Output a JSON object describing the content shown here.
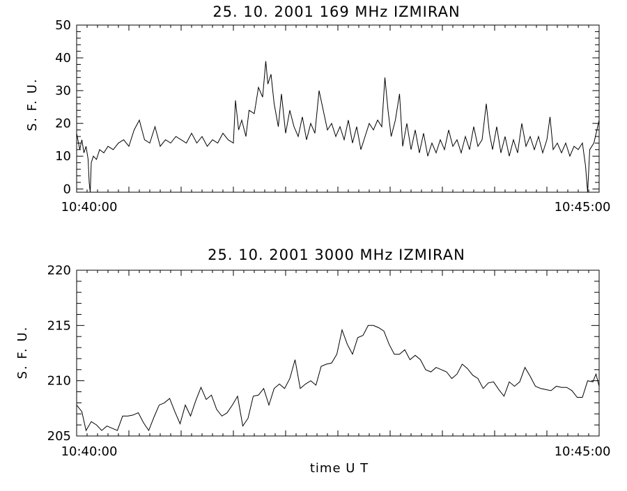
{
  "chart_data": [
    {
      "type": "line",
      "title": "25.  10.  2001    169 MHz    IZMIRAN",
      "ylabel": "S. F. U.",
      "xlabel": "",
      "x_tick_labels": [
        "10:40:00",
        "10:45:00"
      ],
      "y_ticks": [
        0,
        10,
        20,
        30,
        40,
        50
      ],
      "ylim": [
        -1,
        50
      ],
      "xlim_minutes": [
        0,
        5
      ],
      "grid": false,
      "series": [
        {
          "values": [
            [
              0.0,
              17
            ],
            [
              0.03,
              12
            ],
            [
              0.05,
              15
            ],
            [
              0.07,
              11
            ],
            [
              0.09,
              13
            ],
            [
              0.11,
              9
            ],
            [
              0.12,
              2
            ],
            [
              0.13,
              -1
            ],
            [
              0.14,
              8
            ],
            [
              0.16,
              10
            ],
            [
              0.19,
              9
            ],
            [
              0.22,
              12
            ],
            [
              0.26,
              11
            ],
            [
              0.3,
              13
            ],
            [
              0.35,
              12
            ],
            [
              0.4,
              14
            ],
            [
              0.45,
              15
            ],
            [
              0.5,
              13
            ],
            [
              0.55,
              18
            ],
            [
              0.6,
              21
            ],
            [
              0.65,
              15
            ],
            [
              0.7,
              14
            ],
            [
              0.75,
              19
            ],
            [
              0.8,
              13
            ],
            [
              0.85,
              15
            ],
            [
              0.9,
              14
            ],
            [
              0.95,
              16
            ],
            [
              1.0,
              15
            ],
            [
              1.05,
              14
            ],
            [
              1.1,
              17
            ],
            [
              1.15,
              14
            ],
            [
              1.2,
              16
            ],
            [
              1.25,
              13
            ],
            [
              1.3,
              15
            ],
            [
              1.35,
              14
            ],
            [
              1.4,
              17
            ],
            [
              1.45,
              15
            ],
            [
              1.5,
              14
            ],
            [
              1.52,
              27
            ],
            [
              1.55,
              18
            ],
            [
              1.58,
              21
            ],
            [
              1.62,
              16
            ],
            [
              1.65,
              24
            ],
            [
              1.7,
              23
            ],
            [
              1.74,
              31
            ],
            [
              1.78,
              28
            ],
            [
              1.81,
              39
            ],
            [
              1.83,
              32
            ],
            [
              1.86,
              35
            ],
            [
              1.89,
              26
            ],
            [
              1.93,
              19
            ],
            [
              1.96,
              29
            ],
            [
              2.0,
              17
            ],
            [
              2.04,
              24
            ],
            [
              2.08,
              19
            ],
            [
              2.12,
              16
            ],
            [
              2.16,
              22
            ],
            [
              2.2,
              15
            ],
            [
              2.24,
              20
            ],
            [
              2.28,
              17
            ],
            [
              2.32,
              30
            ],
            [
              2.36,
              24
            ],
            [
              2.4,
              18
            ],
            [
              2.44,
              20
            ],
            [
              2.48,
              16
            ],
            [
              2.52,
              19
            ],
            [
              2.56,
              15
            ],
            [
              2.6,
              21
            ],
            [
              2.64,
              14
            ],
            [
              2.68,
              19
            ],
            [
              2.72,
              12
            ],
            [
              2.76,
              16
            ],
            [
              2.8,
              20
            ],
            [
              2.84,
              18
            ],
            [
              2.88,
              21
            ],
            [
              2.92,
              19
            ],
            [
              2.95,
              34
            ],
            [
              2.98,
              24
            ],
            [
              3.01,
              16
            ],
            [
              3.05,
              21
            ],
            [
              3.09,
              29
            ],
            [
              3.12,
              13
            ],
            [
              3.16,
              20
            ],
            [
              3.2,
              12
            ],
            [
              3.24,
              18
            ],
            [
              3.28,
              11
            ],
            [
              3.32,
              17
            ],
            [
              3.36,
              10
            ],
            [
              3.4,
              14
            ],
            [
              3.44,
              11
            ],
            [
              3.48,
              15
            ],
            [
              3.52,
              12
            ],
            [
              3.56,
              18
            ],
            [
              3.6,
              13
            ],
            [
              3.64,
              15
            ],
            [
              3.68,
              11
            ],
            [
              3.72,
              16
            ],
            [
              3.76,
              12
            ],
            [
              3.8,
              19
            ],
            [
              3.84,
              13
            ],
            [
              3.88,
              15
            ],
            [
              3.92,
              26
            ],
            [
              3.95,
              17
            ],
            [
              3.98,
              12
            ],
            [
              4.02,
              19
            ],
            [
              4.06,
              11
            ],
            [
              4.1,
              16
            ],
            [
              4.14,
              10
            ],
            [
              4.18,
              15
            ],
            [
              4.22,
              11
            ],
            [
              4.26,
              20
            ],
            [
              4.3,
              13
            ],
            [
              4.34,
              16
            ],
            [
              4.38,
              12
            ],
            [
              4.42,
              16
            ],
            [
              4.46,
              11
            ],
            [
              4.5,
              15
            ],
            [
              4.53,
              22
            ],
            [
              4.56,
              12
            ],
            [
              4.6,
              14
            ],
            [
              4.64,
              11
            ],
            [
              4.68,
              14
            ],
            [
              4.72,
              10
            ],
            [
              4.76,
              13
            ],
            [
              4.8,
              12
            ],
            [
              4.84,
              14
            ],
            [
              4.87,
              7
            ],
            [
              4.89,
              -1
            ],
            [
              4.91,
              12
            ],
            [
              4.95,
              14
            ],
            [
              5.0,
              21
            ]
          ]
        }
      ]
    },
    {
      "type": "line",
      "title": "25.  10.  2001    3000 MHz    IZMIRAN",
      "ylabel": "S. F. U.",
      "xlabel": "time   U  T",
      "x_tick_labels": [
        "10:40:00",
        "10:45:00"
      ],
      "y_ticks": [
        205,
        210,
        215,
        220
      ],
      "ylim": [
        205,
        220
      ],
      "xlim_minutes": [
        0,
        5
      ],
      "grid": false,
      "series": [
        {
          "values": [
            [
              0.0,
              207.8
            ],
            [
              0.05,
              207.2
            ],
            [
              0.09,
              205.5
            ],
            [
              0.14,
              206.3
            ],
            [
              0.19,
              206.0
            ],
            [
              0.24,
              205.5
            ],
            [
              0.29,
              205.9
            ],
            [
              0.34,
              205.7
            ],
            [
              0.39,
              205.5
            ],
            [
              0.44,
              206.8
            ],
            [
              0.49,
              206.8
            ],
            [
              0.54,
              206.9
            ],
            [
              0.59,
              207.1
            ],
            [
              0.64,
              206.2
            ],
            [
              0.69,
              205.5
            ],
            [
              0.74,
              206.7
            ],
            [
              0.79,
              207.8
            ],
            [
              0.84,
              208.0
            ],
            [
              0.89,
              208.4
            ],
            [
              0.94,
              207.2
            ],
            [
              0.99,
              206.1
            ],
            [
              1.04,
              207.8
            ],
            [
              1.09,
              206.8
            ],
            [
              1.14,
              208.2
            ],
            [
              1.19,
              209.4
            ],
            [
              1.24,
              208.3
            ],
            [
              1.29,
              208.7
            ],
            [
              1.34,
              207.4
            ],
            [
              1.39,
              206.8
            ],
            [
              1.44,
              207.1
            ],
            [
              1.49,
              207.8
            ],
            [
              1.54,
              208.6
            ],
            [
              1.59,
              205.9
            ],
            [
              1.64,
              206.6
            ],
            [
              1.69,
              208.6
            ],
            [
              1.74,
              208.7
            ],
            [
              1.79,
              209.3
            ],
            [
              1.84,
              207.8
            ],
            [
              1.89,
              209.3
            ],
            [
              1.94,
              209.7
            ],
            [
              1.99,
              209.3
            ],
            [
              2.04,
              210.2
            ],
            [
              2.09,
              211.9
            ],
            [
              2.14,
              209.3
            ],
            [
              2.19,
              209.7
            ],
            [
              2.24,
              210.0
            ],
            [
              2.29,
              209.6
            ],
            [
              2.34,
              211.3
            ],
            [
              2.39,
              211.5
            ],
            [
              2.44,
              211.6
            ],
            [
              2.49,
              212.4
            ],
            [
              2.54,
              214.6
            ],
            [
              2.59,
              213.3
            ],
            [
              2.64,
              212.4
            ],
            [
              2.69,
              213.9
            ],
            [
              2.74,
              214.1
            ],
            [
              2.79,
              215.0
            ],
            [
              2.84,
              215.0
            ],
            [
              2.89,
              214.8
            ],
            [
              2.94,
              214.5
            ],
            [
              2.99,
              213.3
            ],
            [
              3.04,
              212.4
            ],
            [
              3.09,
              212.4
            ],
            [
              3.14,
              212.8
            ],
            [
              3.19,
              211.9
            ],
            [
              3.24,
              212.3
            ],
            [
              3.29,
              211.9
            ],
            [
              3.34,
              211.0
            ],
            [
              3.39,
              210.8
            ],
            [
              3.44,
              211.2
            ],
            [
              3.49,
              211.0
            ],
            [
              3.54,
              210.8
            ],
            [
              3.59,
              210.2
            ],
            [
              3.64,
              210.6
            ],
            [
              3.69,
              211.5
            ],
            [
              3.74,
              211.1
            ],
            [
              3.79,
              210.5
            ],
            [
              3.84,
              210.2
            ],
            [
              3.89,
              209.3
            ],
            [
              3.94,
              209.8
            ],
            [
              3.99,
              209.9
            ],
            [
              4.04,
              209.2
            ],
            [
              4.09,
              208.6
            ],
            [
              4.14,
              209.9
            ],
            [
              4.19,
              209.5
            ],
            [
              4.24,
              209.9
            ],
            [
              4.29,
              211.2
            ],
            [
              4.34,
              210.4
            ],
            [
              4.39,
              209.5
            ],
            [
              4.44,
              209.3
            ],
            [
              4.49,
              209.2
            ],
            [
              4.54,
              209.1
            ],
            [
              4.59,
              209.5
            ],
            [
              4.64,
              209.4
            ],
            [
              4.69,
              209.4
            ],
            [
              4.74,
              209.1
            ],
            [
              4.79,
              208.5
            ],
            [
              4.84,
              208.5
            ],
            [
              4.89,
              210.0
            ],
            [
              4.94,
              209.9
            ],
            [
              4.97,
              210.6
            ],
            [
              5.0,
              209.5
            ]
          ]
        }
      ]
    }
  ]
}
